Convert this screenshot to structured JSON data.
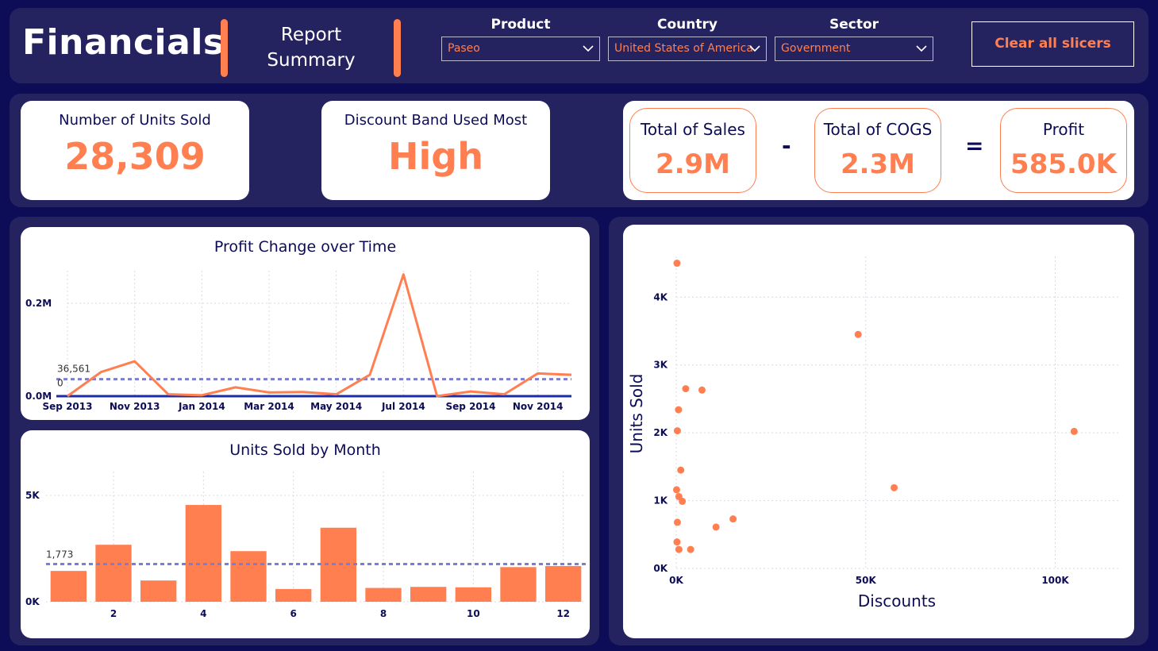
{
  "header": {
    "title": "Financials",
    "subtitle_line1": "Report",
    "subtitle_line2": "Summary",
    "clear_button_label": "Clear all slicers",
    "slicers": [
      {
        "label": "Product",
        "value": "Paseo"
      },
      {
        "label": "Country",
        "value": "United States of America"
      },
      {
        "label": "Sector",
        "value": "Government"
      }
    ]
  },
  "kpis": {
    "units_sold": {
      "label": "Number of Units Sold",
      "value": "28,309"
    },
    "discount_band": {
      "label": "Discount Band Used Most",
      "value": "High"
    },
    "sales": {
      "label": "Total of Sales",
      "value": "2.9M"
    },
    "cogs": {
      "label": "Total of COGS",
      "value": "2.3M"
    },
    "profit": {
      "label": "Profit",
      "value": "585.0K"
    },
    "minus_sign": "-",
    "equals_sign": "="
  },
  "colors": {
    "accent": "#ff7f50",
    "navy": "#0c0c57",
    "panel": "#25235f",
    "avg_line": "#7b7fd1",
    "baseline": "#1c2ca8"
  },
  "chart_data": [
    {
      "type": "line",
      "title": "Profit Change over Time",
      "x": [
        "Sep 2013",
        "Oct 2013",
        "Nov 2013",
        "Dec 2013",
        "Jan 2014",
        "Feb 2014",
        "Mar 2014",
        "Apr 2014",
        "May 2014",
        "Jun 2014",
        "Jul 2014",
        "Aug 2014",
        "Sep 2014",
        "Oct 2014",
        "Nov 2014",
        "Dec 2014"
      ],
      "x_tick_labels": [
        "Sep 2013",
        "Nov 2013",
        "Jan 2014",
        "Mar 2014",
        "May 2014",
        "Jul 2014",
        "Sep 2014",
        "Nov 2014"
      ],
      "values": [
        0,
        0.052,
        0.075,
        0.004,
        0.002,
        0.019,
        0.008,
        0.009,
        0.004,
        0.046,
        0.262,
        0,
        0.01,
        0.004,
        0.049,
        0.046
      ],
      "y_tick_labels": [
        "0.0M",
        "0.2M"
      ],
      "y_ticks": [
        0,
        0.2
      ],
      "ylim": [
        0,
        0.27
      ],
      "average_label": "36,561",
      "average_value": 0.0366,
      "zero_label": "0",
      "grid": true
    },
    {
      "type": "bar",
      "title": "Units Sold by Month",
      "categories": [
        1,
        2,
        3,
        4,
        5,
        6,
        7,
        8,
        9,
        10,
        11,
        12
      ],
      "x_tick_labels": [
        "2",
        "4",
        "6",
        "8",
        "10",
        "12"
      ],
      "values": [
        1450,
        2680,
        1000,
        4550,
        2380,
        600,
        3480,
        650,
        700,
        680,
        1630,
        1680
      ],
      "y_tick_labels": [
        "0K",
        "5K"
      ],
      "y_ticks": [
        0,
        5000
      ],
      "ylim": [
        0,
        5000
      ],
      "average_label": "1,773",
      "average_value": 1773,
      "grid": true
    },
    {
      "type": "scatter",
      "xlabel": "Discounts",
      "ylabel": "Units Sold",
      "x_tick_labels": [
        "0K",
        "50K",
        "100K"
      ],
      "x_ticks": [
        0,
        50000,
        100000
      ],
      "y_tick_labels": [
        "0K",
        "1K",
        "2K",
        "3K",
        "4K"
      ],
      "y_ticks": [
        0,
        1000,
        2000,
        3000,
        4000
      ],
      "xlim": [
        0,
        120000
      ],
      "ylim": [
        0,
        4600
      ],
      "points": [
        {
          "x": 200,
          "y": 4500
        },
        {
          "x": 48000,
          "y": 3450
        },
        {
          "x": 2500,
          "y": 2650
        },
        {
          "x": 6800,
          "y": 2630
        },
        {
          "x": 600,
          "y": 2340
        },
        {
          "x": 300,
          "y": 2030
        },
        {
          "x": 105000,
          "y": 2020
        },
        {
          "x": 1200,
          "y": 1450
        },
        {
          "x": 57500,
          "y": 1190
        },
        {
          "x": 100,
          "y": 1160
        },
        {
          "x": 700,
          "y": 1060
        },
        {
          "x": 1600,
          "y": 990
        },
        {
          "x": 15000,
          "y": 730
        },
        {
          "x": 300,
          "y": 680
        },
        {
          "x": 10500,
          "y": 610
        },
        {
          "x": 200,
          "y": 390
        },
        {
          "x": 700,
          "y": 280
        },
        {
          "x": 3800,
          "y": 280
        }
      ],
      "grid": true
    }
  ]
}
